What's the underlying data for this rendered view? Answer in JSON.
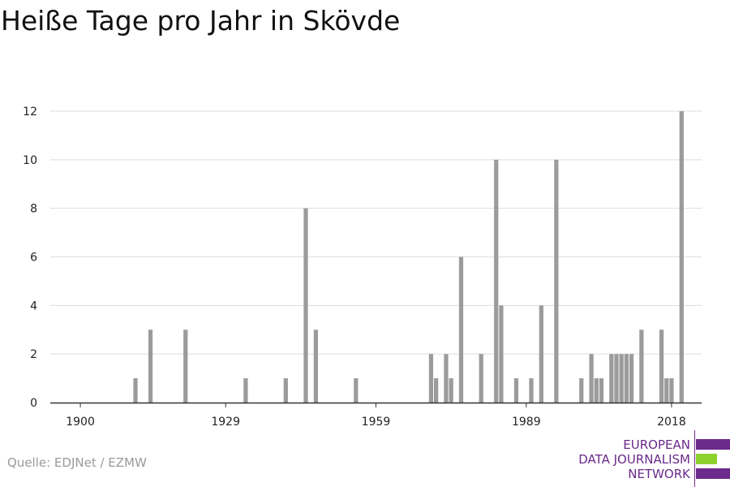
{
  "title": "Heiße Tage pro Jahr in Skövde",
  "source": "Quelle: EDJNet / EZMW",
  "logo": {
    "lines": [
      "EUROPEAN",
      "DATA JOURNALISM",
      "NETWORK"
    ],
    "colors": {
      "text": "#6a2a8a",
      "bar_primary": "#6b2a8c",
      "bar_accent": "#8dd12d"
    }
  },
  "colors": {
    "bar": "#9b9b9b",
    "grid": "#dddddd",
    "axis": "#333333",
    "text": "#222222"
  },
  "chart_data": {
    "type": "bar",
    "title": "Heiße Tage pro Jahr in Skövde",
    "xlabel": "",
    "ylabel": "",
    "xlim": [
      1894,
      2024
    ],
    "ylim": [
      0,
      12
    ],
    "yticks": [
      0,
      2,
      4,
      6,
      8,
      10,
      12
    ],
    "xticks": [
      1900,
      1929,
      1959,
      1989,
      2018
    ],
    "grid": true,
    "x": [
      1911,
      1914,
      1921,
      1933,
      1941,
      1945,
      1947,
      1955,
      1970,
      1971,
      1973,
      1974,
      1976,
      1980,
      1983,
      1984,
      1987,
      1990,
      1992,
      1995,
      2000,
      2002,
      2003,
      2004,
      2006,
      2007,
      2008,
      2009,
      2010,
      2012,
      2016,
      2017,
      2018,
      2020
    ],
    "values": [
      1,
      3,
      3,
      1,
      1,
      8,
      3,
      1,
      2,
      1,
      2,
      1,
      6,
      2,
      10,
      4,
      1,
      1,
      4,
      10,
      1,
      2,
      1,
      1,
      2,
      2,
      2,
      2,
      2,
      3,
      3,
      1,
      1,
      12
    ]
  }
}
